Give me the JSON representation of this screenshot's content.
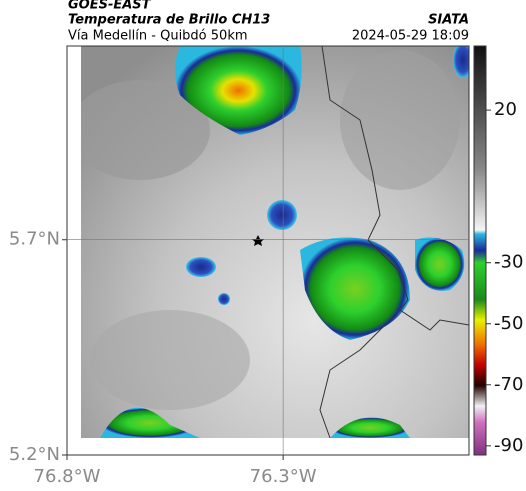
{
  "header": {
    "satellite": "GOES-EAST",
    "product": "Temperatura de Brillo CH13",
    "organization": "SIATA",
    "region": "Vía Medellín - Quibdó 50km",
    "timestamp": "2024-05-29 18:09"
  },
  "map": {
    "xlim": [
      -76.8,
      -75.87
    ],
    "ylim": [
      5.2,
      6.15
    ],
    "xticks": [
      {
        "value": -76.8,
        "label": "76.8°W"
      },
      {
        "value": -76.3,
        "label": "76.3°W"
      }
    ],
    "yticks": [
      {
        "value": 5.2,
        "label": "5.2°N"
      },
      {
        "value": 5.7,
        "label": "5.7°N"
      }
    ],
    "grid": true
  },
  "colorbar": {
    "lim": [
      -93,
      41
    ],
    "ticks": [
      20,
      -30,
      -50,
      -70,
      -90
    ]
  }
}
